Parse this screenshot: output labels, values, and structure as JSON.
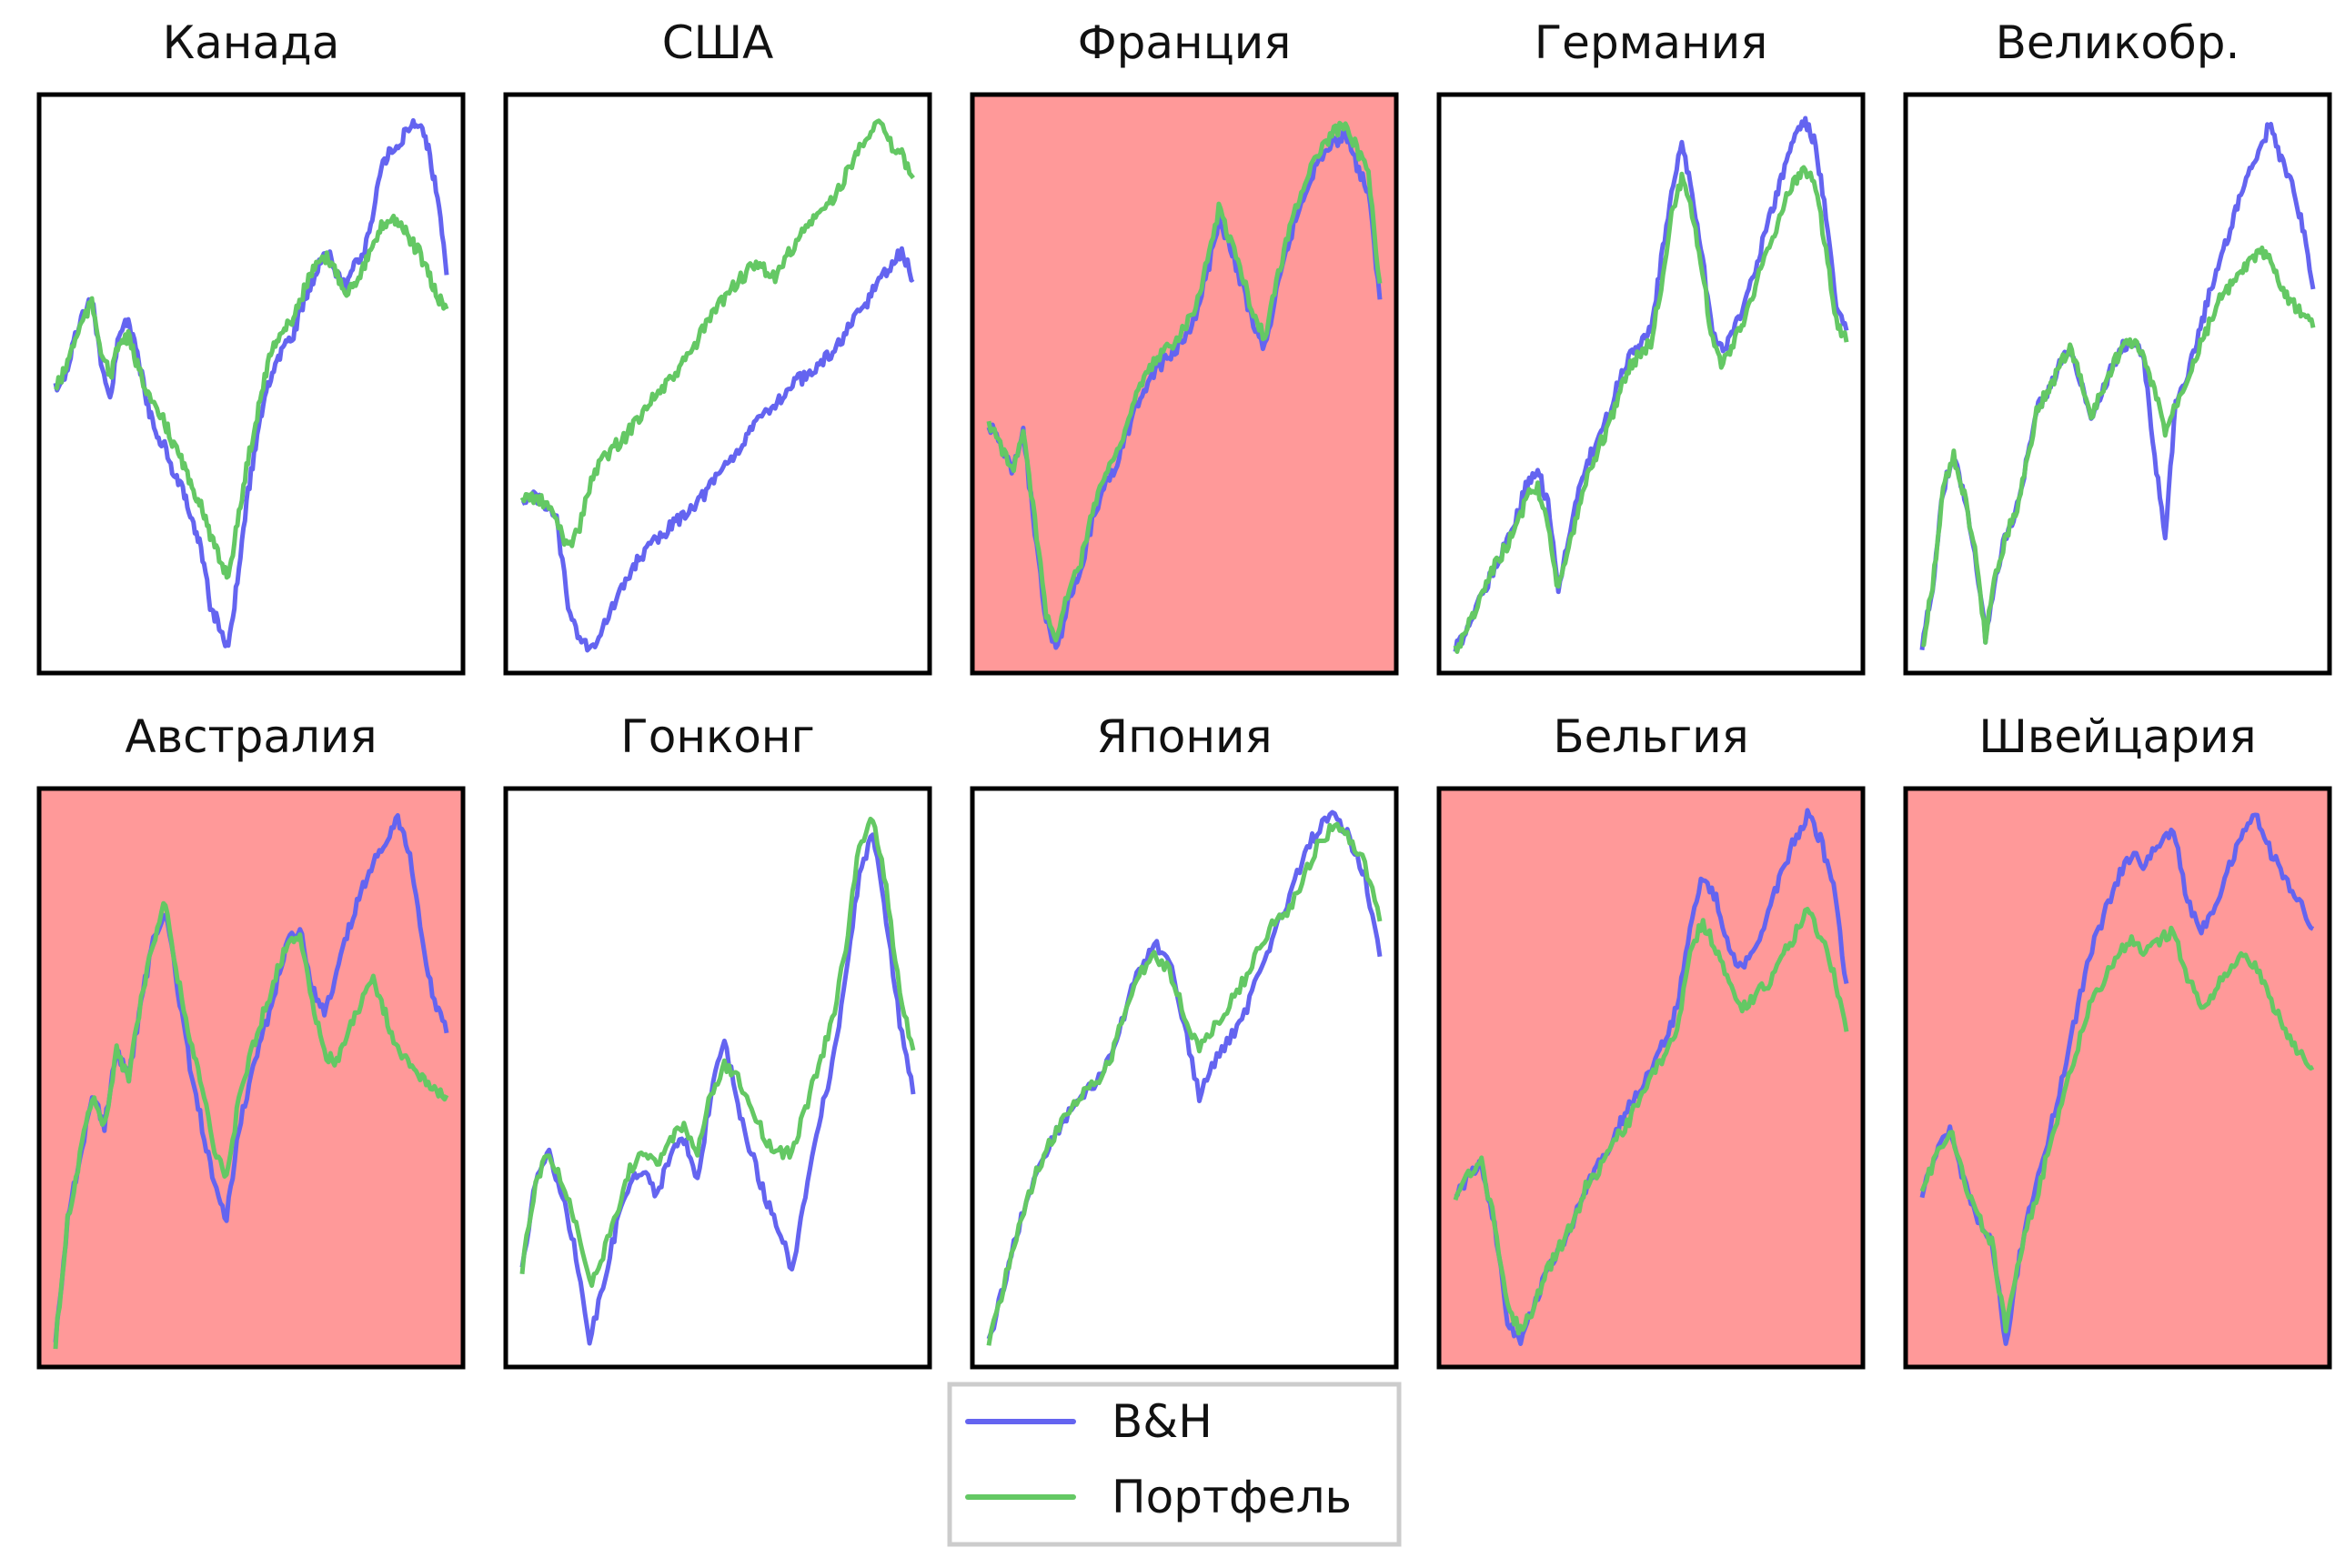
{
  "colors": {
    "bh": "#6464f0",
    "portfolio": "#64c864",
    "negative_bg": "#ff9999",
    "frame": "#000000"
  },
  "legend": {
    "items": [
      {
        "label": "B&H",
        "color": "#6464f0"
      },
      {
        "label": "Портфель",
        "color": "#64c864"
      }
    ]
  },
  "chart_data": [
    {
      "type": "line",
      "title": "Канада",
      "negative_background": false,
      "series": [
        {
          "name": "B&H",
          "values": [
            48,
            50,
            56,
            61,
            64,
            52,
            46,
            58,
            60,
            54,
            46,
            40,
            38,
            33,
            30,
            24,
            20,
            10,
            6,
            2,
            14,
            28,
            38,
            46,
            52,
            55,
            57,
            62,
            66,
            70,
            72,
            68,
            66,
            70,
            72,
            80,
            88,
            90,
            92,
            94,
            95,
            90,
            82,
            68
          ]
        },
        {
          "name": "Портфель",
          "values": [
            48,
            51,
            56,
            60,
            63,
            55,
            50,
            56,
            57,
            52,
            48,
            44,
            42,
            38,
            35,
            30,
            28,
            22,
            18,
            15,
            24,
            34,
            42,
            50,
            56,
            58,
            60,
            64,
            68,
            70,
            71,
            68,
            65,
            67,
            70,
            73,
            77,
            78,
            77,
            74,
            72,
            68,
            64,
            62
          ]
        }
      ]
    },
    {
      "type": "line",
      "title": "США",
      "negative_background": false,
      "series": [
        {
          "name": "B&H",
          "values": [
            31,
            31,
            30,
            27,
            12,
            6,
            4,
            8,
            12,
            16,
            20,
            22,
            24,
            26,
            28,
            30,
            32,
            35,
            38,
            40,
            43,
            46,
            48,
            50,
            52,
            53,
            55,
            57,
            60,
            63,
            66,
            70,
            72,
            75,
            70
          ]
        },
        {
          "name": "Портфель",
          "values": [
            31,
            31,
            30,
            27,
            22,
            26,
            34,
            38,
            40,
            42,
            45,
            48,
            50,
            52,
            55,
            58,
            62,
            65,
            68,
            70,
            72,
            72,
            70,
            74,
            77,
            80,
            82,
            84,
            88,
            92,
            96,
            98,
            94,
            92,
            88
          ]
        }
      ]
    },
    {
      "type": "line",
      "title": "Франция",
      "negative_background": true,
      "series": [
        {
          "name": "B&H",
          "values": [
            42,
            38,
            33,
            40,
            22,
            5,
            0,
            10,
            14,
            24,
            30,
            34,
            40,
            46,
            50,
            53,
            55,
            58,
            62,
            70,
            80,
            74,
            68,
            60,
            56,
            66,
            75,
            82,
            88,
            92,
            94,
            96,
            90,
            85,
            65
          ]
        },
        {
          "name": "Портфель",
          "values": [
            42,
            38,
            33,
            40,
            24,
            7,
            2,
            12,
            16,
            26,
            32,
            36,
            42,
            48,
            52,
            55,
            57,
            60,
            64,
            72,
            82,
            76,
            70,
            62,
            58,
            68,
            77,
            84,
            90,
            93,
            96,
            98,
            93,
            88,
            68
          ]
        }
      ]
    },
    {
      "type": "line",
      "title": "Германия",
      "negative_background": false,
      "series": [
        {
          "name": "B&H",
          "values": [
            5,
            8,
            12,
            16,
            20,
            24,
            28,
            34,
            36,
            30,
            16,
            24,
            32,
            38,
            42,
            46,
            52,
            56,
            58,
            60,
            72,
            84,
            92,
            84,
            72,
            60,
            56,
            60,
            64,
            70,
            76,
            82,
            88,
            94,
            96,
            92,
            80,
            64,
            60
          ]
        },
        {
          "name": "Портфель",
          "values": [
            5,
            8,
            12,
            16,
            20,
            23,
            26,
            32,
            33,
            27,
            15,
            22,
            30,
            36,
            40,
            44,
            50,
            54,
            56,
            58,
            68,
            80,
            86,
            80,
            70,
            58,
            54,
            58,
            62,
            67,
            72,
            77,
            82,
            86,
            88,
            85,
            74,
            62,
            58
          ]
        }
      ]
    },
    {
      "type": "line",
      "title": "Великобр.",
      "negative_background": false,
      "series": [
        {
          "name": "B&H",
          "values": [
            10,
            20,
            35,
            40,
            34,
            25,
            12,
            22,
            28,
            32,
            40,
            48,
            50,
            54,
            57,
            52,
            46,
            50,
            54,
            57,
            58,
            55,
            40,
            28,
            48,
            52,
            58,
            64,
            70,
            74,
            80,
            84,
            88,
            92,
            86,
            82,
            76,
            66
          ]
        },
        {
          "name": "Портфель",
          "values": [
            10,
            20,
            35,
            40,
            34,
            25,
            12,
            22,
            28,
            32,
            40,
            48,
            50,
            54,
            57,
            52,
            46,
            50,
            54,
            57,
            58,
            55,
            50,
            44,
            48,
            52,
            56,
            60,
            64,
            66,
            68,
            70,
            72,
            70,
            66,
            64,
            62,
            60
          ]
        }
      ]
    },
    {
      "type": "line",
      "title": "Австралия",
      "negative_background": true,
      "series": [
        {
          "name": "B&H",
          "values": [
            5,
            25,
            35,
            45,
            40,
            52,
            48,
            60,
            70,
            75,
            62,
            50,
            40,
            30,
            25,
            40,
            48,
            55,
            62,
            70,
            72,
            62,
            58,
            64,
            72,
            78,
            82,
            86,
            90,
            84,
            70,
            60,
            55
          ]
        },
        {
          "name": "Портфель",
          "values": [
            5,
            25,
            35,
            45,
            40,
            52,
            48,
            60,
            70,
            76,
            64,
            54,
            46,
            36,
            32,
            44,
            52,
            58,
            64,
            70,
            71,
            60,
            52,
            50,
            56,
            60,
            64,
            58,
            52,
            50,
            48,
            46,
            45
          ]
        }
      ]
    },
    {
      "type": "line",
      "title": "Гонконг",
      "negative_background": false,
      "series": [
        {
          "name": "B&H",
          "values": [
            28,
            40,
            44,
            38,
            30,
            18,
            26,
            34,
            40,
            42,
            38,
            44,
            46,
            40,
            52,
            60,
            50,
            44,
            38,
            34,
            28,
            38,
            48,
            56,
            68,
            82,
            88,
            76,
            62,
            52
          ]
        },
        {
          "name": "Портфель",
          "values": [
            28,
            40,
            44,
            40,
            34,
            26,
            30,
            36,
            42,
            44,
            42,
            46,
            48,
            44,
            52,
            56,
            54,
            50,
            46,
            44,
            44,
            50,
            56,
            62,
            72,
            86,
            90,
            80,
            66,
            58
          ]
        }
      ]
    },
    {
      "type": "line",
      "title": "Япония",
      "negative_background": false,
      "series": [
        {
          "name": "B&H",
          "values": [
            2,
            12,
            22,
            30,
            36,
            40,
            44,
            46,
            50,
            58,
            66,
            70,
            68,
            56,
            44,
            50,
            54,
            58,
            66,
            72,
            78,
            86,
            90,
            92,
            88,
            82,
            68
          ]
        },
        {
          "name": "Портфель",
          "values": [
            2,
            12,
            22,
            30,
            36,
            40,
            44,
            46,
            50,
            58,
            65,
            68,
            66,
            58,
            52,
            56,
            60,
            64,
            70,
            74,
            76,
            82,
            88,
            90,
            88,
            84,
            74
          ]
        }
      ]
    },
    {
      "type": "line",
      "title": "Бельгия",
      "negative_background": true,
      "series": [
        {
          "name": "B&H",
          "values": [
            30,
            34,
            36,
            26,
            10,
            6,
            12,
            18,
            22,
            26,
            32,
            36,
            40,
            44,
            48,
            52,
            56,
            62,
            76,
            84,
            80,
            72,
            68,
            72,
            78,
            84,
            90,
            94,
            90,
            82,
            66
          ]
        },
        {
          "name": "Портфель",
          "values": [
            30,
            34,
            36,
            26,
            12,
            8,
            12,
            18,
            22,
            26,
            32,
            35,
            39,
            42,
            46,
            50,
            54,
            58,
            72,
            76,
            72,
            66,
            62,
            64,
            66,
            70,
            74,
            78,
            74,
            68,
            58
          ]
        }
      ]
    },
    {
      "type": "line",
      "title": "Швейцария",
      "negative_background": true,
      "series": [
        {
          "name": "B&H",
          "values": [
            34,
            40,
            44,
            36,
            30,
            26,
            10,
            24,
            34,
            42,
            52,
            62,
            72,
            78,
            84,
            88,
            86,
            90,
            92,
            80,
            76,
            80,
            86,
            92,
            94,
            88,
            84,
            80,
            76
          ]
        },
        {
          "name": "Портфель",
          "values": [
            34,
            40,
            44,
            36,
            30,
            26,
            12,
            24,
            32,
            40,
            48,
            56,
            64,
            68,
            72,
            74,
            72,
            74,
            76,
            68,
            64,
            66,
            70,
            72,
            70,
            64,
            60,
            56,
            54
          ]
        }
      ]
    }
  ]
}
